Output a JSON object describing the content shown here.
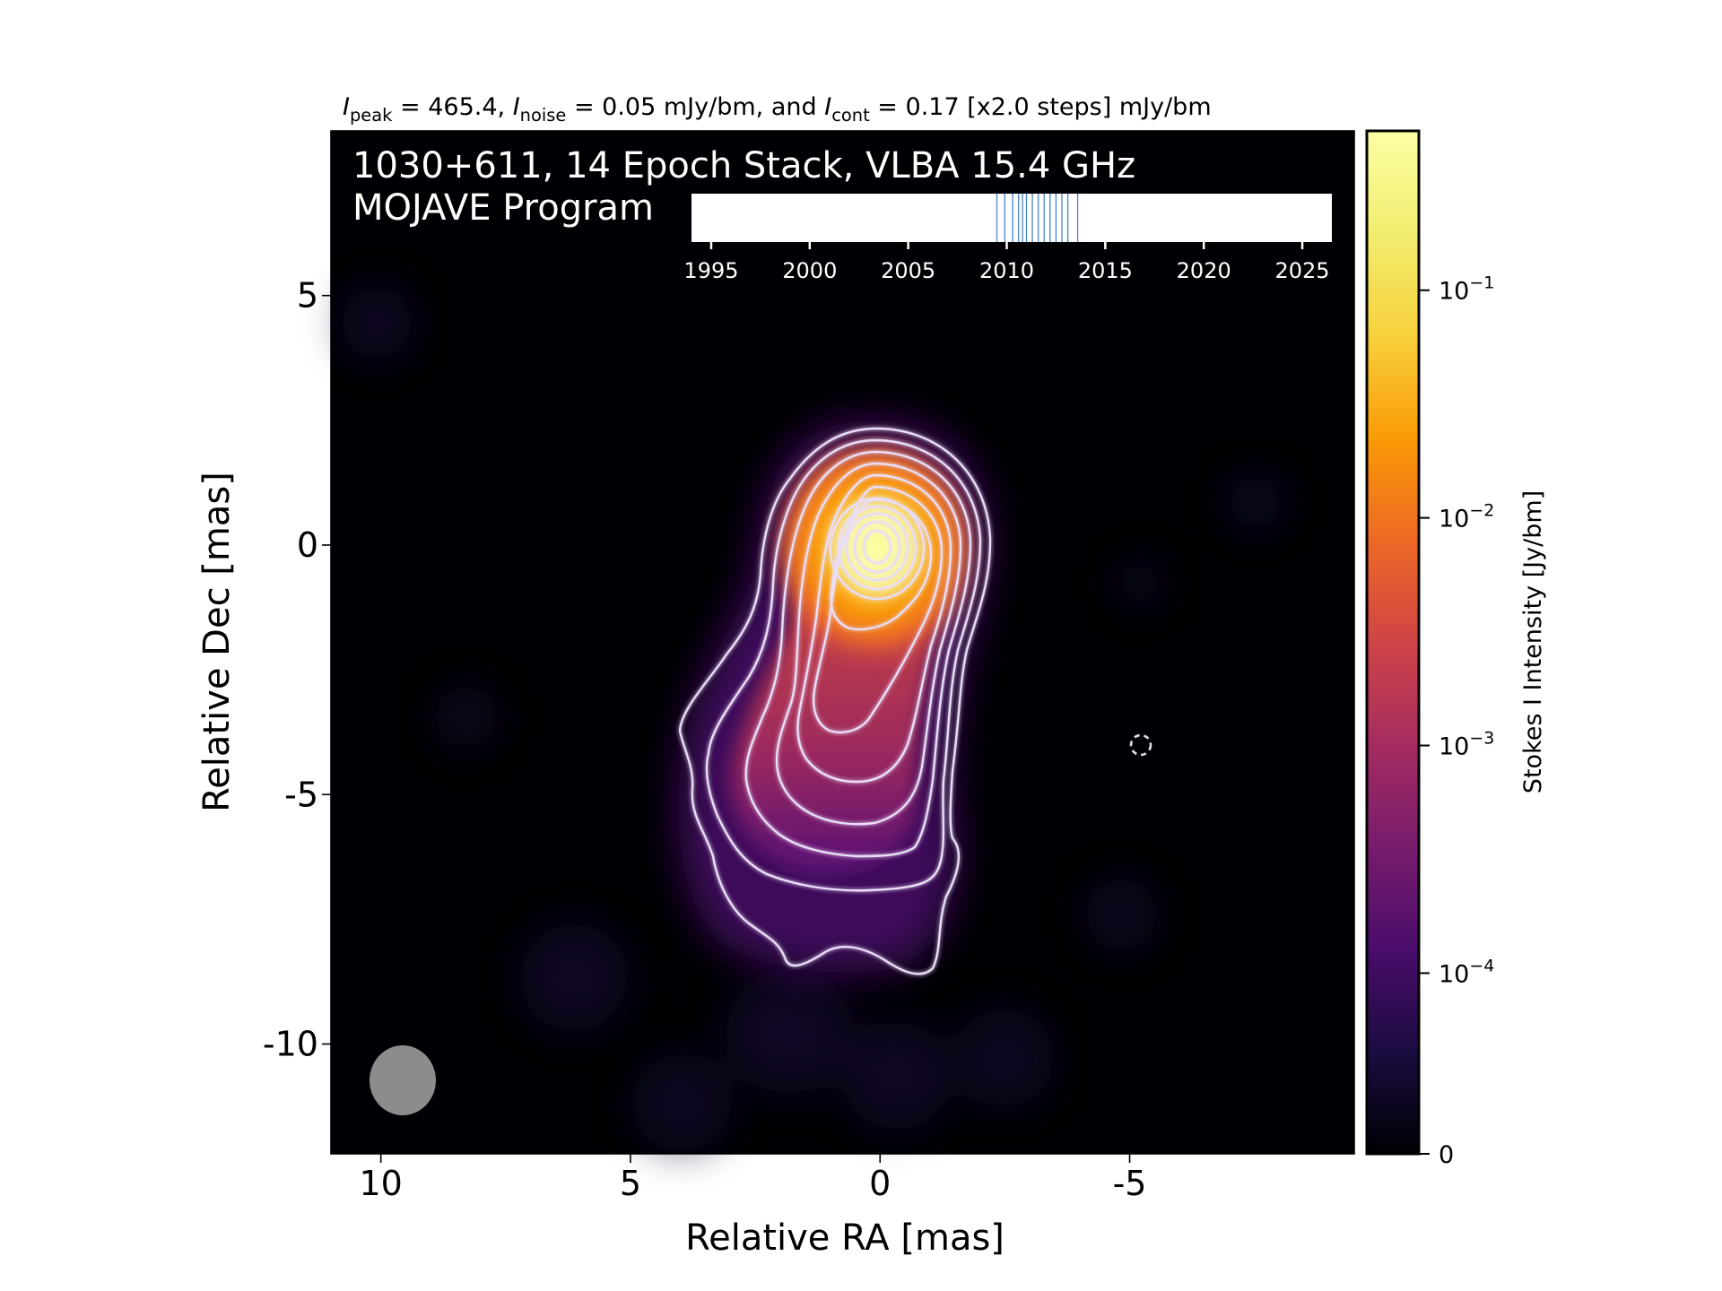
{
  "chart_data": {
    "type": "heatmap",
    "header": {
      "peak_sym": "I",
      "peak_sub": "peak",
      "peak_value": "465.4",
      "noise_sym": "I",
      "noise_sub": "noise",
      "noise_value": "0.05 mJy/bm, and",
      "cont_sym": "I",
      "cont_sub": "cont",
      "cont_value": "0.17 [x2.0 steps] mJy/bm"
    },
    "title_line1": "1030+611, 14 Epoch Stack, VLBA 15.4 GHz",
    "title_line2": "MOJAVE Program",
    "xlabel": "Relative RA [mas]",
    "ylabel": "Relative Dec [mas]",
    "xlim": [
      11,
      -9.5
    ],
    "ylim": [
      -12.2,
      8.3
    ],
    "x_ticks": [
      {
        "value": 10,
        "label": "10"
      },
      {
        "value": 5,
        "label": "5"
      },
      {
        "value": 0,
        "label": "0"
      },
      {
        "value": -5,
        "label": "-5"
      }
    ],
    "y_ticks": [
      {
        "value": 5,
        "label": "5"
      },
      {
        "value": 0,
        "label": "0"
      },
      {
        "value": -5,
        "label": "-5"
      },
      {
        "value": -10,
        "label": "-10"
      }
    ],
    "colorbar": {
      "label": "Stokes I Intensity [Jy/bm]",
      "scale": "log",
      "colormap": "inferno",
      "ticks": [
        {
          "value": "1e-1",
          "base": "10",
          "exp": "−1"
        },
        {
          "value": "1e-2",
          "base": "10",
          "exp": "−2"
        },
        {
          "value": "1e-3",
          "base": "10",
          "exp": "−3"
        },
        {
          "value": "1e-4",
          "base": "10",
          "exp": "−4"
        },
        {
          "value": "0",
          "base": "0",
          "exp": ""
        }
      ]
    },
    "epoch_timeline": {
      "xlim": [
        1994,
        2026.5
      ],
      "ticks": [
        "1995",
        "2000",
        "2005",
        "2010",
        "2015",
        "2020",
        "2025"
      ],
      "epochs": [
        2009.5,
        2009.9,
        2010.3,
        2010.6,
        2010.8,
        2011.0,
        2011.3,
        2011.6,
        2011.9,
        2012.2,
        2012.5,
        2012.8,
        2013.1,
        2013.6
      ],
      "line_color": "#4a86c5"
    },
    "core": {
      "ra": 0,
      "dec": 0
    },
    "contour_levels_count": 12,
    "contour_color": "#e9ddf7",
    "beam": {
      "ra": 9.6,
      "dec": -10.75,
      "major": 1.4,
      "minor": 1.3,
      "color": "#8c8c8c"
    },
    "marker": {
      "ra": -5.3,
      "dec": -4.0,
      "style": "dashed circle"
    }
  }
}
